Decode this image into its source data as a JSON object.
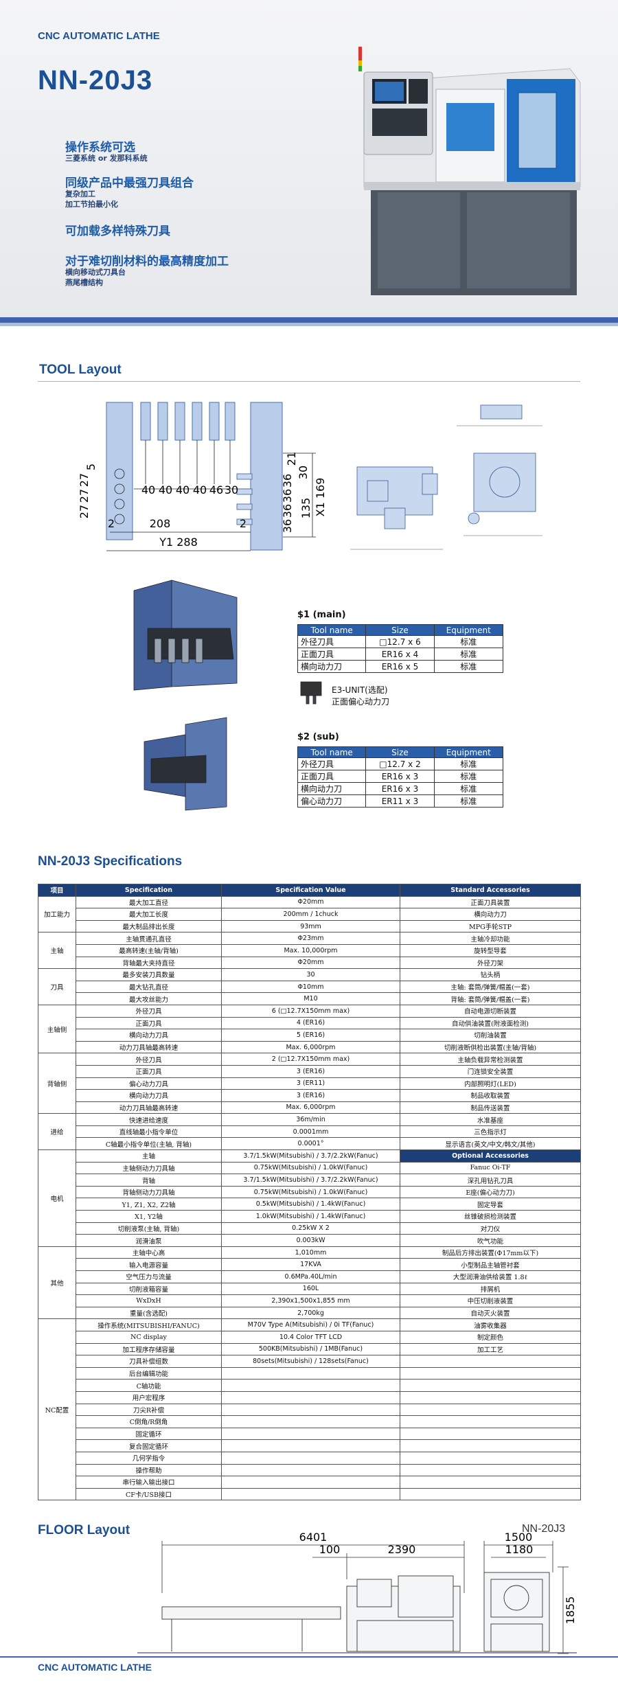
{
  "header": {
    "brand": "CNC AUTOMATIC LATHE",
    "model": "NN-20J3",
    "features": [
      {
        "title": "操作系统可选",
        "items": [
          "三菱系统 or 发那科系统"
        ]
      },
      {
        "title": "同级产品中最强刀具组合",
        "items": [
          "复杂加工",
          "加工节拍最小化"
        ]
      },
      {
        "title": "可加载多样特殊刀具"
      },
      {
        "title": "对于难切削材料的最高精度加工",
        "items": [
          "横向移动式刀具台",
          "燕尾槽结构"
        ]
      }
    ]
  },
  "tool_layout": {
    "title": "TOOL Layout",
    "dimensions": [
      "27",
      "27",
      "27",
      "5",
      "40",
      "40",
      "40",
      "40",
      "46",
      "30",
      "21",
      "30",
      "36",
      "36",
      "36",
      "36",
      "135",
      "X1 169",
      "2",
      "208",
      "2",
      "Y1 288"
    ],
    "main": {
      "title": "$1 (main)",
      "columns": [
        "Tool name",
        "Size",
        "Equipment"
      ],
      "rows": [
        [
          "外径刀具",
          "□12.7 x 6",
          "标准"
        ],
        [
          "正面刀具",
          "ER16 x 4",
          "标准"
        ],
        [
          "横向动力刀",
          "ER16 x 5",
          "标准"
        ]
      ]
    },
    "unit_note": [
      "E3-UNIT(选配)",
      "正面偏心动力刀"
    ],
    "sub": {
      "title": "$2 (sub)",
      "columns": [
        "Tool name",
        "Size",
        "Equipment"
      ],
      "rows": [
        [
          "外径刀具",
          "□12.7 x 2",
          "标准"
        ],
        [
          "正面刀具",
          "ER16 x 3",
          "标准"
        ],
        [
          "横向动力刀",
          "ER16 x 3",
          "标准"
        ],
        [
          "偏心动力刀",
          "ER11 x 3",
          "标准"
        ]
      ]
    }
  },
  "specifications": {
    "title": "NN-20J3 Specifications",
    "columns": [
      "项目",
      "Specification",
      "Specification Value",
      "Standard Accessories"
    ],
    "groups": [
      {
        "name": "加工能力",
        "rows": [
          [
            "最大加工直径",
            "Φ20mm"
          ],
          [
            "最大加工长度",
            "200mm / 1chuck"
          ],
          [
            "最大制品排出长度",
            "93mm"
          ]
        ]
      },
      {
        "name": "主轴",
        "rows": [
          [
            "主轴贯通孔直径",
            "Φ23mm"
          ],
          [
            "最高转速(主轴/背轴)",
            "Max. 10,000rpm"
          ],
          [
            "背轴最大夹持直径",
            "Φ20mm"
          ]
        ]
      },
      {
        "name": "刀具",
        "rows": [
          [
            "最多安装刀具数量",
            "30"
          ],
          [
            "最大钻孔直径",
            "Φ10mm"
          ],
          [
            "最大攻丝能力",
            "M10"
          ]
        ]
      },
      {
        "name": "主轴侧",
        "rows": [
          [
            "外径刀具",
            "6 (□12.7X150mm max)"
          ],
          [
            "正面刀具",
            "4 (ER16)"
          ],
          [
            "横向动力刀具",
            "5 (ER16)"
          ],
          [
            "动力刀具轴最高转速",
            "Max. 6,000rpm"
          ]
        ]
      },
      {
        "name": "背轴侧",
        "rows": [
          [
            "外径刀具",
            "2 (□12.7X150mm max)"
          ],
          [
            "正面刀具",
            "3 (ER16)"
          ],
          [
            "偏心动力刀具",
            "3 (ER11)"
          ],
          [
            "横向动力刀具",
            "3 (ER16)"
          ],
          [
            "动力刀具轴最高转速",
            "Max. 6,000rpm"
          ]
        ]
      },
      {
        "name": "进给",
        "rows": [
          [
            "快速进给速度",
            "36m/min"
          ],
          [
            "直线轴最小指令单位",
            "0.0001mm"
          ],
          [
            "C轴最小指令单位(主轴, 背轴)",
            "0.0001°"
          ]
        ]
      },
      {
        "name": "电机",
        "rows": [
          [
            "主轴",
            "3.7/1.5kW(Mitsubishi) / 3.7/2.2kW(Fanuc)"
          ],
          [
            "主轴侧动力刀具轴",
            "0.75kW(Mitsubishi) / 1.0kW(Fanuc)"
          ],
          [
            "背轴",
            "3.7/1.5kW(Mitsubishi) / 3.7/2.2kW(Fanuc)"
          ],
          [
            "背轴侧动力刀具轴",
            "0.75kW(Mitsubishi) / 1.0kW(Fanuc)"
          ],
          [
            "Y1, Z1, X2, Z2轴",
            "0.5kW(Mitsubishi) / 1.4kW(Fanuc)"
          ],
          [
            "X1, Y2轴",
            "1.0kW(Mitsubishi) / 1.4kW(Fanuc)"
          ],
          [
            "切削液泵(主轴, 背轴)",
            "0.25kW X 2"
          ],
          [
            "润滑油泵",
            "0.003kW"
          ]
        ]
      },
      {
        "name": "其他",
        "rows": [
          [
            "主轴中心高",
            "1,010mm"
          ],
          [
            "输入电源容量",
            "17KVA"
          ],
          [
            "空气压力与流量",
            "0.6MPa.40L/min"
          ],
          [
            "切削液箱容量",
            "160L"
          ],
          [
            "WxDxH",
            "2,390x1,500x1,855 mm"
          ],
          [
            "重量(含选配)",
            "2,700kg"
          ]
        ]
      },
      {
        "name": "NC配置",
        "rows": [
          [
            "操作系统(MITSUBISHI/FANUC)",
            "M70V Type A(Mitsubishi) / 0i TF(Fanuc)"
          ],
          [
            "NC display",
            "10.4 Color TFT LCD"
          ],
          [
            "加工程序存储容量",
            "500KB(Mitsubishi) / 1MB(Fanuc)"
          ],
          [
            "刀具补偿组数",
            "80sets(Mitsubishi) / 128sets(Fanuc)"
          ],
          [
            "后台编辑功能"
          ],
          [
            "C轴功能"
          ],
          [
            "用户宏程序"
          ],
          [
            "刀尖R补偿"
          ],
          [
            "C倒角/R倒角"
          ],
          [
            "固定循环"
          ],
          [
            "复合固定循环"
          ],
          [
            "几何学指令"
          ],
          [
            "操作帮助"
          ],
          [
            "串行输入输出接口"
          ],
          [
            "CF卡/USB接口"
          ]
        ]
      }
    ],
    "standard_accessories": [
      "正面刀具装置",
      "横向动力刀",
      "MPG手轮STP",
      "主轴冷却功能",
      "旋转型导套",
      "外径刀架",
      "钻头柄",
      "主轴: 套筒/弹簧/帽盖(一套)",
      "背轴: 套筒/弹簧/帽盖(一套)",
      "自动电源切断装置",
      "自动供油装置(附液面检测)",
      "切削油装置",
      "切削液断供检出装置(主轴/背轴)",
      "主轴负载异常检测装置",
      "门连锁安全装置",
      "内部照明灯(LED)",
      "制品收取装置",
      "制品传送装置",
      "水准基座",
      "三色指示灯",
      "显示语言(英文/中文/韩文/其他)"
    ],
    "optional_title": "Optional Accessories",
    "optional_accessories": [
      "Fanuc Oi-TF",
      "深孔用钻孔刀具",
      "E座(偏心动力刀)",
      "固定导套",
      "丝锥破损检测装置",
      "对刀仪",
      "吹气功能",
      "制品后方排出装置(Φ17mm以下)",
      "小型制品主轴管衬套",
      "大型润滑油供给装置 1.8ℓ",
      "排屑机",
      "中压切削液装置",
      "自动灭火装置",
      "油雾收集器",
      "制定颜色",
      "加工工艺"
    ]
  },
  "floor_layout": {
    "title": "FLOOR Layout",
    "model": "NN-20J3",
    "dimensions": [
      "6401",
      "100",
      "2390",
      "1500",
      "1180",
      "1855"
    ]
  },
  "footer": {
    "brand": "CNC AUTOMATIC LATHE"
  }
}
